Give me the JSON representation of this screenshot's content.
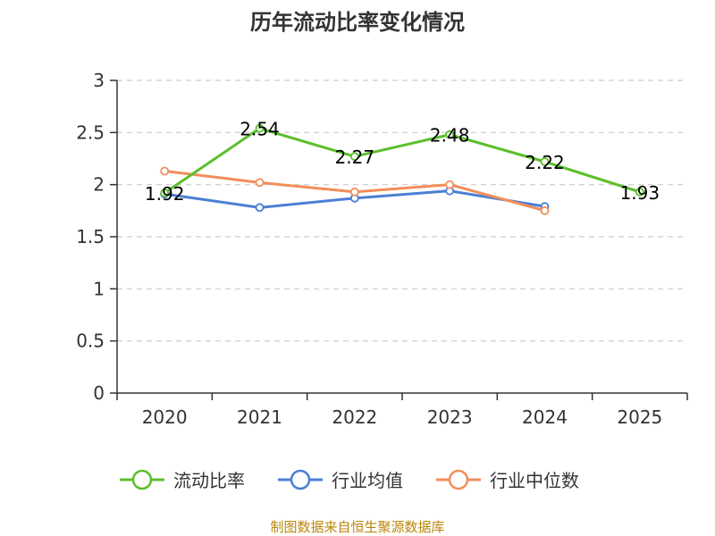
{
  "chart_data": {
    "type": "line",
    "title": "历年流动比率变化情况",
    "categories": [
      "2020",
      "2021",
      "2022",
      "2023",
      "2024",
      "2025"
    ],
    "y_ticks": [
      "0",
      "0.5",
      "1",
      "1.5",
      "2",
      "2.5",
      "3"
    ],
    "ylim": [
      0,
      3
    ],
    "grid": true,
    "legend_position": "bottom",
    "series": [
      {
        "name": "流动比率",
        "color": "#5bbf2a",
        "values": [
          1.92,
          2.54,
          2.27,
          2.48,
          2.22,
          1.93
        ],
        "labels": [
          "1.92",
          "2.54",
          "2.27",
          "2.48",
          "2.22",
          "1.93"
        ]
      },
      {
        "name": "行业均值",
        "color": "#4a7fd4",
        "values": [
          1.91,
          1.78,
          1.87,
          1.94,
          1.79,
          null
        ]
      },
      {
        "name": "行业中位数",
        "color": "#f28e5b",
        "values": [
          2.13,
          2.02,
          1.93,
          2.0,
          1.75,
          null
        ]
      }
    ],
    "source": "制图数据来自恒生聚源数据库"
  }
}
